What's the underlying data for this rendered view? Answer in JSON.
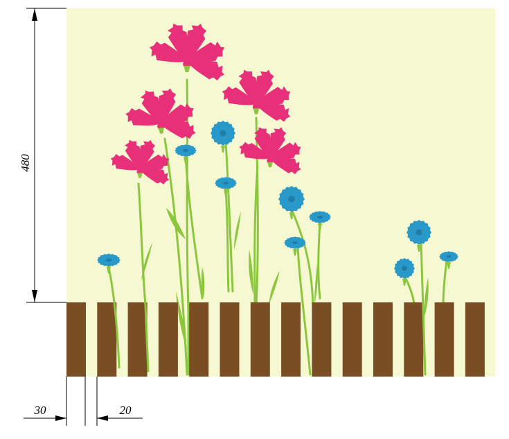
{
  "dimensions": {
    "height_label": "480",
    "slat_width_label": "30",
    "gap_width_label": "20"
  },
  "colors": {
    "background": "#f6f8d2",
    "fence_slat": "#7a4e23",
    "stem": "#8cc63f",
    "pink_flower": "#e8307a",
    "blue_flower": "#2899c9",
    "dimension_line": "#000000"
  },
  "fence": {
    "slat_count": 14
  },
  "flowers": {
    "pink_count": 5,
    "blue_count": 10
  }
}
